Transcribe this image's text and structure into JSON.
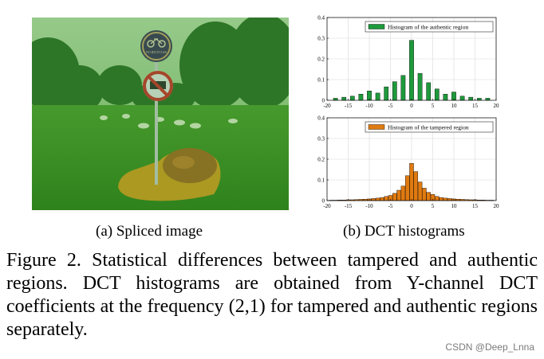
{
  "figure": {
    "subcaption_a": "(a)  Spliced image",
    "subcaption_b": "(b)  DCT histograms",
    "caption": "Figure 2. Statistical differences between tampered and authentic regions. DCT histograms are obtained from Y-channel DCT coefficients at the frequency (2,1) for tampered and authentic regions separately.",
    "watermark": "CSDN @Deep_Lnna"
  },
  "image": {
    "description_icon": "spliced-park-photo",
    "sign_top_text": "NO BICYCLES",
    "tint_authentic": "#2e9a2e",
    "tint_tampered": "#e39a1e"
  },
  "chart_data": [
    {
      "type": "bar",
      "title": "Histogram of the authentic region",
      "legend": "Histogram of the authentic region",
      "legend_position": "top-right",
      "color": "#1e9a3c",
      "xlim": [
        -20,
        20
      ],
      "ylim": [
        0,
        0.4
      ],
      "xticks": [
        -20,
        -15,
        -10,
        -5,
        0,
        5,
        10,
        15,
        20
      ],
      "yticks": [
        0,
        0.1,
        0.2,
        0.3,
        0.4
      ],
      "ytick_labels": [
        "0",
        "0.1",
        "0.2",
        "0.3",
        "0.4"
      ],
      "x": [
        -18,
        -16,
        -14,
        -12,
        -10,
        -8,
        -6,
        -4,
        -2,
        0,
        2,
        4,
        6,
        8,
        10,
        12,
        14,
        16,
        18
      ],
      "values": [
        0.01,
        0.015,
        0.02,
        0.03,
        0.045,
        0.035,
        0.065,
        0.09,
        0.12,
        0.29,
        0.13,
        0.085,
        0.055,
        0.03,
        0.04,
        0.02,
        0.015,
        0.01,
        0.01
      ],
      "grid": true
    },
    {
      "type": "bar",
      "title": "Histogram of the tampered region",
      "legend": "Histogram of the tampered region",
      "legend_position": "top-right",
      "color": "#e07a10",
      "xlim": [
        -20,
        20
      ],
      "ylim": [
        0,
        0.4
      ],
      "xticks": [
        -20,
        -15,
        -10,
        -5,
        0,
        5,
        10,
        15,
        20
      ],
      "yticks": [
        0,
        0.1,
        0.2,
        0.3,
        0.4
      ],
      "ytick_labels": [
        "0",
        "0.1",
        "0.2",
        "0.3",
        "0.4"
      ],
      "x": [
        -19,
        -18,
        -17,
        -16,
        -15,
        -14,
        -13,
        -12,
        -11,
        -10,
        -9,
        -8,
        -7,
        -6,
        -5,
        -4,
        -3,
        -2,
        -1,
        0,
        1,
        2,
        3,
        4,
        5,
        6,
        7,
        8,
        9,
        10,
        11,
        12,
        13,
        14,
        15,
        16,
        17,
        18,
        19
      ],
      "values": [
        0.002,
        0.002,
        0.003,
        0.003,
        0.004,
        0.004,
        0.005,
        0.006,
        0.007,
        0.008,
        0.01,
        0.012,
        0.015,
        0.02,
        0.025,
        0.035,
        0.05,
        0.07,
        0.12,
        0.18,
        0.14,
        0.09,
        0.06,
        0.04,
        0.03,
        0.02,
        0.015,
        0.012,
        0.01,
        0.008,
        0.007,
        0.006,
        0.005,
        0.004,
        0.004,
        0.003,
        0.003,
        0.002,
        0.002
      ],
      "grid": true
    }
  ]
}
